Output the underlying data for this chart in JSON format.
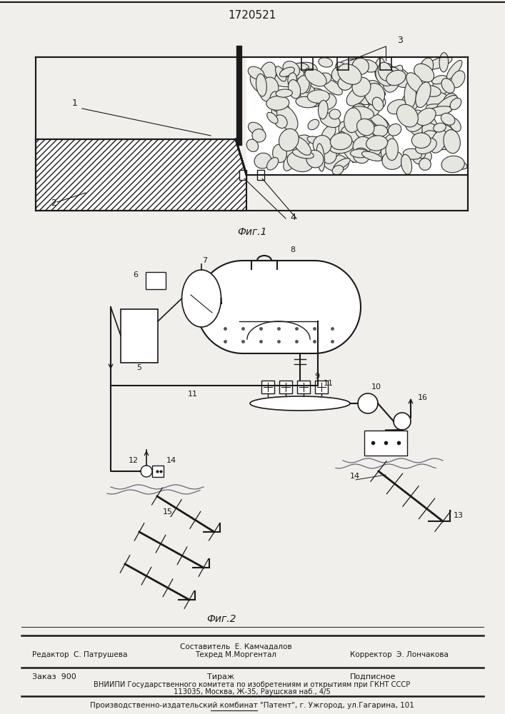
{
  "title": "1720521",
  "fig1_label": "Фиг.1",
  "fig2_label": "Фиг.2",
  "footer_line1_left": "Редактор  С. Патрушева",
  "footer_line1_center_top": "Составитель  Е. Камчадалов",
  "footer_line1_center": "Техред М.Моргентал",
  "footer_line1_right": "Корректор  Э. Лончакова",
  "footer_line2_col1": "Заказ  900",
  "footer_line2_col2": "Тираж",
  "footer_line2_col3": "Подписное",
  "footer_line3": "ВНИИПИ Государственного комитета по изобретениям и открытиям при ГКНТ СССР",
  "footer_line4": "113035, Москва, Ж-35, Раушская наб., 4/5",
  "footer_line5": "Производственно-издательский комбинат \"Патент\", г. Ужгород, ул.Гагарина, 101",
  "bg_color": "#f0efeb",
  "line_color": "#1a1a1a"
}
